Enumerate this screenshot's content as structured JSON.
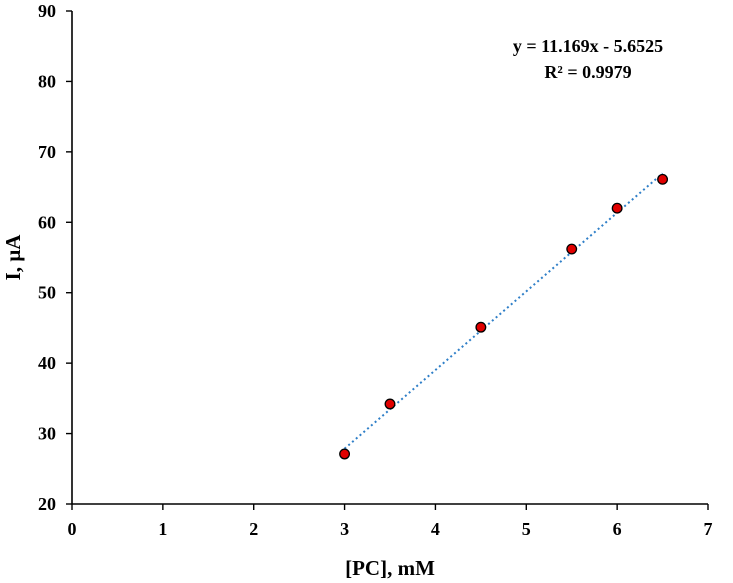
{
  "chart_data": {
    "type": "scatter",
    "xlabel": "[PC], mM",
    "ylabel": "I, µA",
    "xlim": [
      0,
      7
    ],
    "ylim": [
      20,
      90
    ],
    "x_ticks": [
      0,
      1,
      2,
      3,
      4,
      5,
      6,
      7
    ],
    "y_ticks": [
      20,
      30,
      40,
      50,
      60,
      70,
      80,
      90
    ],
    "grid": false,
    "series": [
      {
        "x": [
          3.0,
          3.5,
          4.5,
          5.5,
          6.0,
          6.5
        ],
        "y": [
          27.1,
          34.2,
          45.1,
          56.2,
          62.0,
          66.1
        ],
        "marker_color": "#e00000",
        "marker_edge": "#000000"
      }
    ],
    "trendline": {
      "kind": "linear",
      "slope": 11.169,
      "intercept": -5.6525,
      "x_range": [
        3.0,
        6.5
      ],
      "color": "#2f7fc8",
      "style": "dotted",
      "equation_label": "y = 11.169x - 5.6525",
      "r2_label": "R² = 0.9979"
    }
  }
}
